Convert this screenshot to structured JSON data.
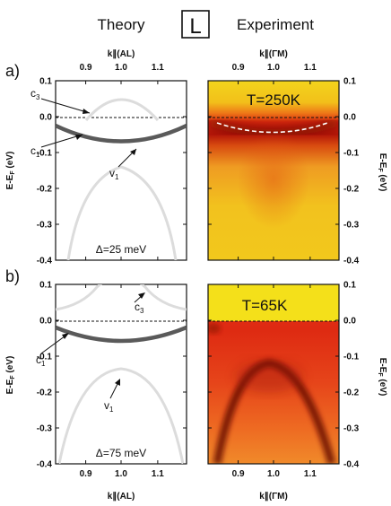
{
  "header": {
    "theory_title": "Theory",
    "experiment_title": "Experiment",
    "point_label": "L"
  },
  "panels": {
    "a_label": "a)",
    "b_label": "b)"
  },
  "axes": {
    "k_al_label": "k∥(AL)",
    "k_gm_label": "k∥(ΓM)",
    "energy_label": "E-E",
    "energy_label_sub": "F",
    "energy_label_unit": " (eV)",
    "k_ticks": [
      "0.9",
      "1.0",
      "1.1"
    ],
    "e_ticks": [
      "0.1",
      "0.0",
      "-0.1",
      "-0.2",
      "-0.3",
      "-0.4"
    ]
  },
  "band_labels": {
    "c3": "c",
    "c3_sub": "3",
    "c1": "c",
    "c1_sub": "1",
    "v1": "v",
    "v1_sub": "1"
  },
  "annotations": {
    "delta_top": "Δ=25 meV",
    "delta_bottom": "Δ=75 meV",
    "temp_top": "T=250K",
    "temp_bottom": "T=65K"
  },
  "colors": {
    "band_dark": "#555555",
    "band_light": "#d9d9d9",
    "arpes_yellow": "#f2d21a",
    "arpes_red": "#d91a0a",
    "arpes_dark": "#7a0d05"
  }
}
